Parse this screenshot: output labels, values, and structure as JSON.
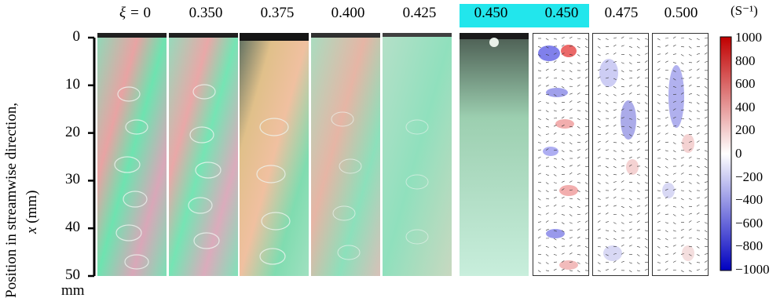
{
  "columns": [
    {
      "prefix": "ξ = ",
      "value": "0"
    },
    {
      "prefix": "",
      "value": "0.350"
    },
    {
      "prefix": "",
      "value": "0.375"
    },
    {
      "prefix": "",
      "value": "0.400"
    },
    {
      "prefix": "",
      "value": "0.425"
    },
    {
      "prefix": "",
      "value": "0.450"
    },
    {
      "prefix": "",
      "value": "0.450"
    },
    {
      "prefix": "",
      "value": "0.475"
    },
    {
      "prefix": "",
      "value": "0.500"
    }
  ],
  "y_axis": {
    "label_line1": "Position in streamwise direction,",
    "label_line2_var": "x",
    "label_line2_unit": " (mm)",
    "ticks": [
      "0",
      "10",
      "20",
      "30",
      "40",
      "50"
    ],
    "tick_values": [
      0,
      10,
      20,
      30,
      40,
      50
    ],
    "unit": "mm"
  },
  "colorbar": {
    "unit": "(S⁻¹)",
    "ticks": [
      "1000",
      "800",
      "600",
      "400",
      "200",
      "0",
      "−200",
      "−400",
      "−600",
      "−800",
      "−1000"
    ],
    "colors": {
      "max": "#c00000",
      "mid": "#ffffff",
      "min": "#0000c0"
    }
  },
  "highlight_color": "#22e6ec"
}
